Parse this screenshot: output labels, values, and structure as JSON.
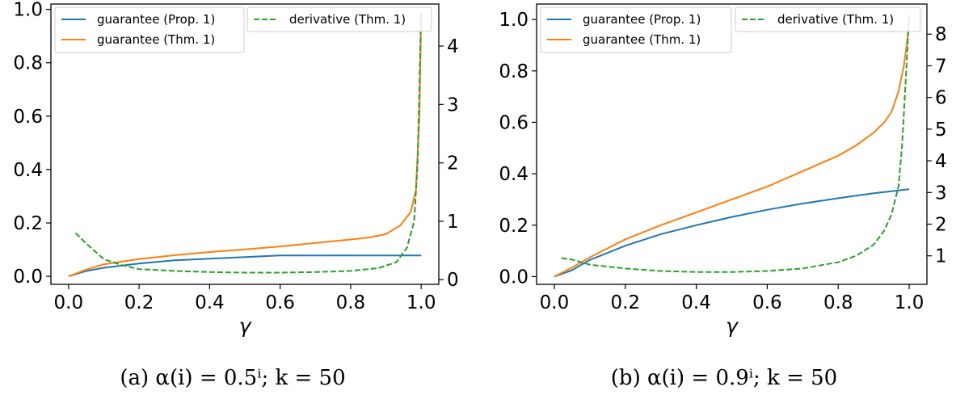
{
  "figure": {
    "captions": [
      "(a) α(i) = 0.5ⁱ; k = 50",
      "(b) α(i) = 0.9ⁱ; k = 50"
    ]
  },
  "chart_data": [
    {
      "type": "line",
      "xlabel": "γ",
      "xlim": [
        -0.05,
        1.05
      ],
      "ylim_left": [
        -0.03,
        1.02
      ],
      "ylim_right": [
        -0.08,
        4.72
      ],
      "x_ticks": [
        0.0,
        0.2,
        0.4,
        0.6,
        0.8,
        1.0
      ],
      "x_tick_labels": [
        "0.0",
        "0.2",
        "0.4",
        "0.6",
        "0.8",
        "1.0"
      ],
      "y_left_ticks": [
        0.0,
        0.2,
        0.4,
        0.6,
        0.8,
        1.0
      ],
      "y_left_tick_labels": [
        "0.0",
        "0.2",
        "0.4",
        "0.6",
        "0.8",
        "1.0"
      ],
      "y_right_ticks": [
        0,
        1,
        2,
        3,
        4
      ],
      "y_right_tick_labels": [
        "0",
        "1",
        "2",
        "3",
        "4"
      ],
      "legend_left": [
        "guarantee (Prop. 1)",
        "guarantee (Thm. 1)"
      ],
      "legend_right": [
        "derivative (Thm. 1)"
      ],
      "series": [
        {
          "name": "guarantee (Prop. 1)",
          "axis": "left",
          "color": "#1f77b4",
          "dash": "solid",
          "x": [
            0.0,
            0.05,
            0.1,
            0.2,
            0.3,
            0.4,
            0.5,
            0.6,
            0.7,
            0.8,
            0.9,
            1.0
          ],
          "y": [
            0.0,
            0.02,
            0.032,
            0.048,
            0.06,
            0.066,
            0.072,
            0.078,
            0.078,
            0.078,
            0.078,
            0.078
          ]
        },
        {
          "name": "guarantee (Thm. 1)",
          "axis": "left",
          "color": "#ff7f0e",
          "dash": "solid",
          "x": [
            0.0,
            0.05,
            0.1,
            0.2,
            0.3,
            0.4,
            0.5,
            0.6,
            0.7,
            0.8,
            0.85,
            0.9,
            0.94,
            0.97,
            0.985,
            0.995,
            1.0
          ],
          "y": [
            0.0,
            0.025,
            0.045,
            0.065,
            0.079,
            0.091,
            0.101,
            0.112,
            0.125,
            0.138,
            0.145,
            0.158,
            0.19,
            0.24,
            0.32,
            0.6,
            0.98
          ]
        },
        {
          "name": "derivative (Thm. 1)",
          "axis": "right",
          "color": "#2ca02c",
          "dash": "dashed",
          "x": [
            0.02,
            0.05,
            0.1,
            0.15,
            0.2,
            0.3,
            0.4,
            0.5,
            0.6,
            0.7,
            0.8,
            0.88,
            0.93,
            0.96,
            0.98,
            0.99,
            1.0
          ],
          "y": [
            0.8,
            0.62,
            0.35,
            0.25,
            0.18,
            0.15,
            0.13,
            0.12,
            0.12,
            0.13,
            0.15,
            0.2,
            0.3,
            0.55,
            1.0,
            2.0,
            4.6
          ]
        }
      ]
    },
    {
      "type": "line",
      "xlabel": "γ",
      "xlim": [
        -0.05,
        1.05
      ],
      "ylim_left": [
        -0.03,
        1.06
      ],
      "ylim_right": [
        0.1,
        8.95
      ],
      "x_ticks": [
        0.0,
        0.2,
        0.4,
        0.6,
        0.8,
        1.0
      ],
      "x_tick_labels": [
        "0.0",
        "0.2",
        "0.4",
        "0.6",
        "0.8",
        "1.0"
      ],
      "y_left_ticks": [
        0.0,
        0.2,
        0.4,
        0.6,
        0.8,
        1.0
      ],
      "y_left_tick_labels": [
        "0.0",
        "0.2",
        "0.4",
        "0.6",
        "0.8",
        "1.0"
      ],
      "y_right_ticks": [
        1,
        2,
        3,
        4,
        5,
        6,
        7,
        8
      ],
      "y_right_tick_labels": [
        "1",
        "2",
        "3",
        "4",
        "5",
        "6",
        "7",
        "8"
      ],
      "legend_left": [
        "guarantee (Prop. 1)",
        "guarantee (Thm. 1)"
      ],
      "legend_right": [
        "derivative (Thm. 1)"
      ],
      "series": [
        {
          "name": "guarantee (Prop. 1)",
          "axis": "left",
          "color": "#1f77b4",
          "dash": "solid",
          "x": [
            0.0,
            0.05,
            0.1,
            0.2,
            0.3,
            0.4,
            0.5,
            0.6,
            0.7,
            0.8,
            0.9,
            1.0
          ],
          "y": [
            0.0,
            0.025,
            0.065,
            0.12,
            0.165,
            0.2,
            0.232,
            0.26,
            0.284,
            0.305,
            0.324,
            0.34
          ]
        },
        {
          "name": "guarantee (Thm. 1)",
          "axis": "left",
          "color": "#ff7f0e",
          "dash": "solid",
          "x": [
            0.0,
            0.05,
            0.1,
            0.2,
            0.3,
            0.4,
            0.5,
            0.6,
            0.7,
            0.8,
            0.85,
            0.9,
            0.93,
            0.95,
            0.97,
            0.985,
            0.995,
            1.0
          ],
          "y": [
            0.0,
            0.035,
            0.075,
            0.145,
            0.2,
            0.25,
            0.3,
            0.35,
            0.41,
            0.47,
            0.51,
            0.56,
            0.6,
            0.64,
            0.72,
            0.82,
            0.92,
            1.0
          ]
        },
        {
          "name": "derivative (Thm. 1)",
          "axis": "right",
          "color": "#2ca02c",
          "dash": "dashed",
          "x": [
            0.02,
            0.05,
            0.1,
            0.2,
            0.3,
            0.4,
            0.5,
            0.6,
            0.7,
            0.8,
            0.85,
            0.9,
            0.93,
            0.95,
            0.97,
            0.98,
            0.99,
            1.0
          ],
          "y": [
            0.93,
            0.88,
            0.72,
            0.6,
            0.52,
            0.49,
            0.49,
            0.52,
            0.6,
            0.8,
            1.0,
            1.35,
            1.8,
            2.3,
            3.2,
            4.5,
            6.5,
            8.6
          ]
        }
      ]
    }
  ]
}
